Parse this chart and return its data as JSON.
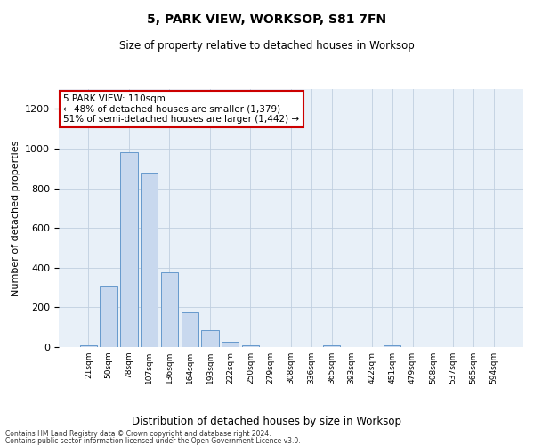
{
  "title": "5, PARK VIEW, WORKSOP, S81 7FN",
  "subtitle": "Size of property relative to detached houses in Worksop",
  "xlabel": "Distribution of detached houses by size in Worksop",
  "ylabel": "Number of detached properties",
  "bar_labels": [
    "21sqm",
    "50sqm",
    "78sqm",
    "107sqm",
    "136sqm",
    "164sqm",
    "193sqm",
    "222sqm",
    "250sqm",
    "279sqm",
    "308sqm",
    "336sqm",
    "365sqm",
    "393sqm",
    "422sqm",
    "451sqm",
    "479sqm",
    "508sqm",
    "537sqm",
    "565sqm",
    "594sqm"
  ],
  "bar_values": [
    10,
    310,
    980,
    880,
    375,
    175,
    85,
    27,
    8,
    0,
    0,
    0,
    8,
    0,
    0,
    10,
    0,
    0,
    0,
    0,
    0
  ],
  "bar_color": "#c8d8ee",
  "bar_edge_color": "#6699cc",
  "annotation_text": "5 PARK VIEW: 110sqm\n← 48% of detached houses are smaller (1,379)\n51% of semi-detached houses are larger (1,442) →",
  "annotation_box_edge_color": "#cc0000",
  "ylim": [
    0,
    1300
  ],
  "yticks": [
    0,
    200,
    400,
    600,
    800,
    1000,
    1200
  ],
  "grid_color": "#c0cfe0",
  "background_color": "#e8f0f8",
  "footer_line1": "Contains HM Land Registry data © Crown copyright and database right 2024.",
  "footer_line2": "Contains public sector information licensed under the Open Government Licence v3.0."
}
